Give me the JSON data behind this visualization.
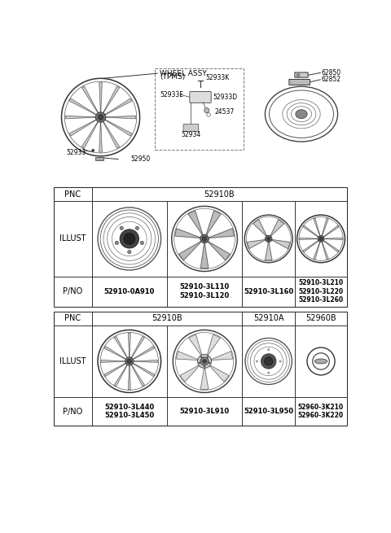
{
  "bg_color": "#ffffff",
  "grid_color": "#333333",
  "table1": {
    "pnc_value": "52910B",
    "pno_values": [
      "52910-0A910",
      "52910-3L110\n52910-3L120",
      "52910-3L160",
      "52910-3L210\n52910-3L220\n52910-3L260"
    ]
  },
  "table2": {
    "pnc_values": [
      "52910B",
      "52910A",
      "52960B"
    ],
    "pno_values": [
      "52910-3L440\n52910-3L450",
      "52910-3L910",
      "52910-3L950",
      "52960-3K210\n52960-3K220"
    ]
  }
}
